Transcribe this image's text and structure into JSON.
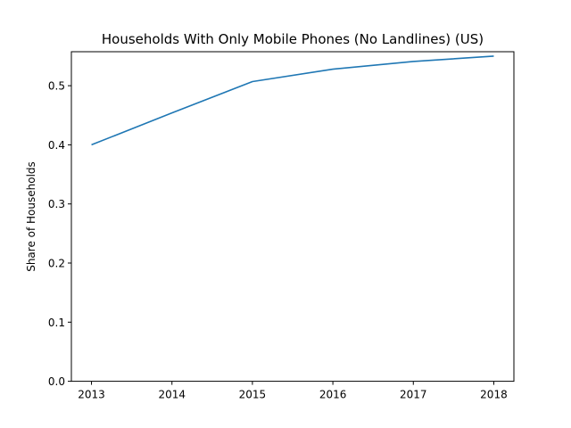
{
  "chart_data": {
    "type": "line",
    "title": "Households With Only Mobile Phones (No Landlines) (US)",
    "xlabel": "",
    "ylabel": "Share of Households",
    "x": [
      2013,
      2014,
      2015,
      2016,
      2017,
      2018
    ],
    "series": [
      {
        "values": [
          0.4,
          0.454,
          0.507,
          0.528,
          0.541,
          0.55
        ],
        "color": "#1f77b4"
      }
    ],
    "xlim": [
      2012.75,
      2018.25
    ],
    "ylim": [
      0,
      0.5575
    ],
    "x_ticks": [
      "2013",
      "2014",
      "2015",
      "2016",
      "2017",
      "2018"
    ],
    "y_ticks": [
      "0.0",
      "0.1",
      "0.2",
      "0.3",
      "0.4",
      "0.5"
    ],
    "grid": false,
    "legend": "none"
  }
}
